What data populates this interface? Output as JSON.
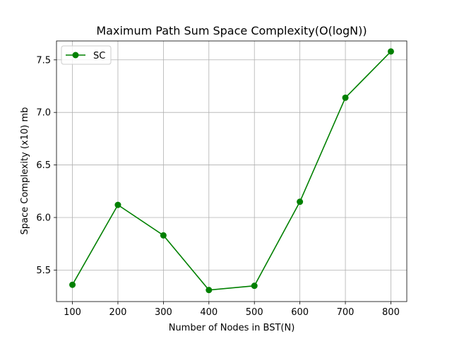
{
  "chart_data": {
    "type": "line",
    "title": "Maximum Path Sum Space Complexity(O(logN))",
    "xlabel": "Number of Nodes in BST(N)",
    "ylabel": "Space Complexity (x10) mb",
    "x": [
      100,
      200,
      300,
      400,
      500,
      600,
      700,
      800
    ],
    "x_ticks": [
      "100",
      "200",
      "300",
      "400",
      "500",
      "600",
      "700",
      "800"
    ],
    "y_ticks": [
      "5.5",
      "6.0",
      "6.5",
      "7.0",
      "7.5"
    ],
    "y_tick_values": [
      5.5,
      6.0,
      6.5,
      7.0,
      7.5
    ],
    "xlim": [
      65,
      835
    ],
    "ylim": [
      5.2,
      7.68
    ],
    "grid": true,
    "legend_position": "top-left",
    "series": [
      {
        "name": "SC",
        "color": "#008000",
        "marker": "circle",
        "values": [
          5.36,
          6.12,
          5.83,
          5.31,
          5.35,
          6.15,
          7.14,
          7.58
        ]
      }
    ]
  }
}
